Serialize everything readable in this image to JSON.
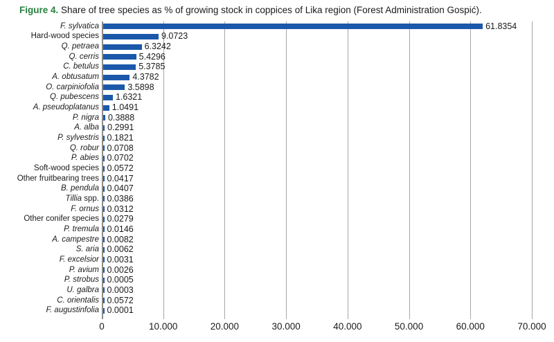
{
  "caption": {
    "prefix": "Figure 4.",
    "text": " Share of tree species as % of growing stock in coppices of Lika region (Forest Administration Gospić)."
  },
  "colors": {
    "bar": "#1B58AA",
    "caption_prefix": "#27813E",
    "gridline": "#A6A6A6",
    "axis": "#8C8C8C",
    "text": "#1a1a1a"
  },
  "chart_data": {
    "type": "bar",
    "orientation": "horizontal",
    "title": "Share of tree species as % of growing stock in coppices of Lika region (Forest Administration Gospić)",
    "xlabel": "",
    "ylabel": "",
    "xlim": [
      0,
      70
    ],
    "grid": "vertical",
    "legend": false,
    "categories": [
      {
        "parts": [
          {
            "t": "F. sylvatica",
            "i": true
          }
        ]
      },
      {
        "parts": [
          {
            "t": "Hard-wood species",
            "i": false
          }
        ]
      },
      {
        "parts": [
          {
            "t": "Q. petraea",
            "i": true
          }
        ]
      },
      {
        "parts": [
          {
            "t": "Q. cerris",
            "i": true
          }
        ]
      },
      {
        "parts": [
          {
            "t": "C. betulus",
            "i": true
          }
        ]
      },
      {
        "parts": [
          {
            "t": "A. obtusatum",
            "i": true
          }
        ]
      },
      {
        "parts": [
          {
            "t": "O. carpiniofolia",
            "i": true
          }
        ]
      },
      {
        "parts": [
          {
            "t": "Q. pubescens",
            "i": true
          }
        ]
      },
      {
        "parts": [
          {
            "t": "A. pseudoplatanus",
            "i": true
          }
        ]
      },
      {
        "parts": [
          {
            "t": "P. nigra",
            "i": true
          }
        ]
      },
      {
        "parts": [
          {
            "t": "A. alba",
            "i": true
          }
        ]
      },
      {
        "parts": [
          {
            "t": "P. sylvestris",
            "i": true
          }
        ]
      },
      {
        "parts": [
          {
            "t": "Q. robur",
            "i": true
          }
        ]
      },
      {
        "parts": [
          {
            "t": "P. abies",
            "i": true
          }
        ]
      },
      {
        "parts": [
          {
            "t": "Soft-wood species",
            "i": false
          }
        ]
      },
      {
        "parts": [
          {
            "t": "Other fruitbearing trees",
            "i": false
          }
        ]
      },
      {
        "parts": [
          {
            "t": "B. pendula",
            "i": true
          }
        ]
      },
      {
        "parts": [
          {
            "t": "Tillia",
            "i": true
          },
          {
            "t": " spp.",
            "i": false
          }
        ]
      },
      {
        "parts": [
          {
            "t": "F. ornus",
            "i": true
          }
        ]
      },
      {
        "parts": [
          {
            "t": "Other conifer species",
            "i": false
          }
        ]
      },
      {
        "parts": [
          {
            "t": "P. tremula",
            "i": true
          }
        ]
      },
      {
        "parts": [
          {
            "t": "A. campestre",
            "i": true
          }
        ]
      },
      {
        "parts": [
          {
            "t": "S. aria",
            "i": true
          }
        ]
      },
      {
        "parts": [
          {
            "t": "F. excelsior",
            "i": true
          }
        ]
      },
      {
        "parts": [
          {
            "t": "P. avium",
            "i": true
          }
        ]
      },
      {
        "parts": [
          {
            "t": "P. strobus",
            "i": true
          }
        ]
      },
      {
        "parts": [
          {
            "t": "U. galbra",
            "i": true
          }
        ]
      },
      {
        "parts": [
          {
            "t": "C. orientalis",
            "i": true
          }
        ]
      },
      {
        "parts": [
          {
            "t": "F. augustinfolia",
            "i": true
          }
        ]
      }
    ],
    "values": [
      61.8354,
      9.0723,
      6.3242,
      5.4296,
      5.3785,
      4.3782,
      3.5898,
      1.6321,
      1.0491,
      0.3888,
      0.2991,
      0.1821,
      0.0708,
      0.0702,
      0.0572,
      0.0417,
      0.0407,
      0.0386,
      0.0312,
      0.0279,
      0.0146,
      0.0082,
      0.0062,
      0.0031,
      0.0026,
      0.0005,
      0.0003,
      0.0572,
      0.0001
    ],
    "value_labels": [
      "61.8354",
      "9.0723",
      "6.3242",
      "5.4296",
      "5.3785",
      "4.3782",
      "3.5898",
      "1.6321",
      "1.0491",
      "0.3888",
      "0.2991",
      "0.1821",
      "0.0708",
      "0.0702",
      "0.0572",
      "0.0417",
      "0.0407",
      "0.0386",
      "0.0312",
      "0.0279",
      "0.0146",
      "0.0082",
      "0.0062",
      "0.0031",
      "0.0026",
      "0.0005",
      "0.0003",
      "0.0572",
      "0.0001"
    ],
    "xtick_values": [
      0,
      10,
      20,
      30,
      40,
      50,
      60,
      70
    ],
    "xtick_labels": [
      "0",
      "10.000",
      "20.000",
      "30.000",
      "40.000",
      "50.000",
      "60.000",
      "70.000"
    ]
  }
}
